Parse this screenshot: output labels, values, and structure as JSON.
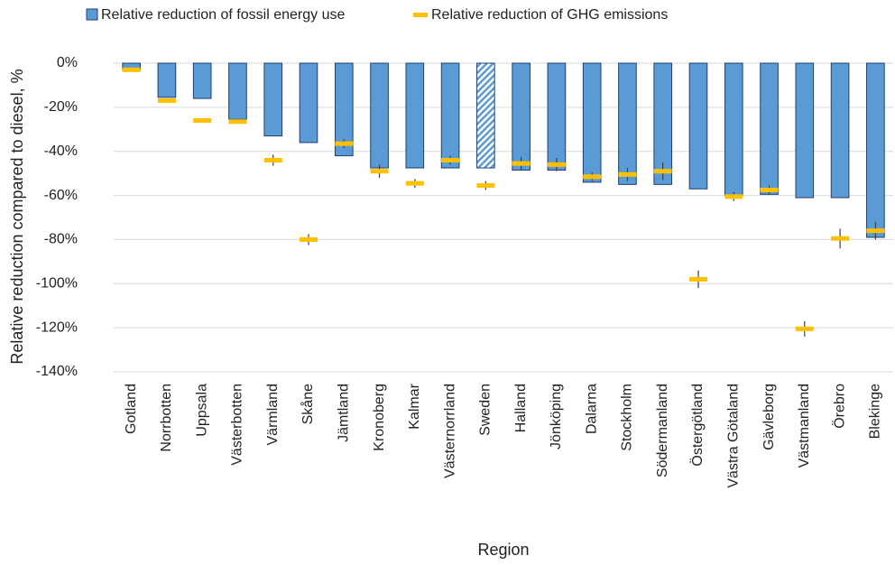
{
  "chart_data": {
    "type": "bar",
    "x_label": "Region",
    "y_label": "Relative reduction compared to diesel, %",
    "categories": [
      "Gotland",
      "Norrbotten",
      "Uppsala",
      "Västerbotten",
      "Värmland",
      "Skåne",
      "Jämtland",
      "Kronoberg",
      "Kalmar",
      "Västernorrland",
      "Sweden",
      "Halland",
      "Jönköping",
      "Dalarna",
      "Stockholm",
      "Södermanland",
      "Östergötland",
      "Västra Götaland",
      "Gävleborg",
      "Västmanland",
      "Örebro",
      "Blekinge"
    ],
    "series": [
      {
        "name": "Relative reduction of fossil energy use",
        "color": "#5b9bd5",
        "values": [
          -3,
          -15.5,
          -16,
          -25.5,
          -33,
          -36,
          -42,
          -47.5,
          -47.5,
          -47.5,
          -47.5,
          -48.5,
          -48.5,
          -54,
          -55,
          -55,
          -57,
          -60,
          -59.5,
          -61,
          -61,
          -79
        ],
        "hatched": [
          false,
          false,
          false,
          false,
          false,
          false,
          false,
          false,
          false,
          false,
          true,
          false,
          false,
          false,
          false,
          false,
          false,
          false,
          false,
          false,
          false,
          false
        ]
      },
      {
        "name": "Relative reduction of GHG emissions",
        "color": "#ffc000",
        "marker": "dash",
        "values": [
          -3,
          -17,
          -26,
          -26.5,
          -44,
          -80,
          -36.5,
          -49,
          -54.5,
          -44,
          -55.5,
          -45.5,
          -46,
          -51.5,
          -50.5,
          -49,
          -98,
          -60.5,
          -57.5,
          -120.5,
          -79.5,
          -76
        ],
        "errors": [
          0,
          1,
          1,
          1,
          2.5,
          2.5,
          2,
          3,
          2,
          2,
          2,
          3,
          3,
          2,
          3,
          4,
          4,
          2,
          2,
          3.5,
          4.5,
          4
        ]
      }
    ],
    "ylim": [
      -140,
      0
    ],
    "yticks": [
      {
        "value": 0,
        "label": "0%"
      },
      {
        "value": -20,
        "label": "-20%"
      },
      {
        "value": -40,
        "label": "-40%"
      },
      {
        "value": -60,
        "label": "-60%"
      },
      {
        "value": -80,
        "label": "-80%"
      },
      {
        "value": -100,
        "label": "-100%"
      },
      {
        "value": -120,
        "label": "-120%"
      },
      {
        "value": -140,
        "label": "-140%"
      }
    ],
    "grid": true,
    "legend": "top"
  }
}
